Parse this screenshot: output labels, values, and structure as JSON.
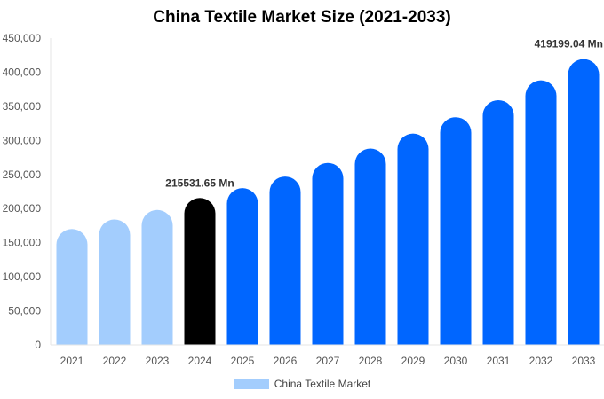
{
  "chart_data": {
    "type": "bar",
    "title": "China Textile Market Size (2021-2033)",
    "categories": [
      "2021",
      "2022",
      "2023",
      "2024",
      "2025",
      "2026",
      "2027",
      "2028",
      "2029",
      "2030",
      "2031",
      "2032",
      "2033"
    ],
    "series": [
      {
        "name": "China Textile Market",
        "values": [
          170000,
          184000,
          198000,
          215531.65,
          230000,
          247000,
          267000,
          288000,
          310000,
          334000,
          359000,
          388000,
          419199.04
        ]
      }
    ],
    "ylim": [
      0,
      450000
    ],
    "yticks": [
      0,
      50000,
      100000,
      150000,
      200000,
      250000,
      300000,
      350000,
      400000,
      450000
    ],
    "ytick_labels": [
      "0",
      "50,000",
      "100,000",
      "150,000",
      "200,000",
      "250,000",
      "300,000",
      "350,000",
      "400,000",
      "450,000"
    ],
    "annotations": [
      {
        "category": "2024",
        "text": "215531.65 Mn"
      },
      {
        "category": "2033",
        "text": "419199.04 Mn"
      }
    ],
    "colors": {
      "historical": "#a3cdfd",
      "current": "#000000",
      "forecast": "#0066ff"
    },
    "bar_groups": [
      "historical",
      "historical",
      "historical",
      "current",
      "forecast",
      "forecast",
      "forecast",
      "forecast",
      "forecast",
      "forecast",
      "forecast",
      "forecast",
      "forecast"
    ],
    "grid": false,
    "legend": "bottom-center"
  }
}
